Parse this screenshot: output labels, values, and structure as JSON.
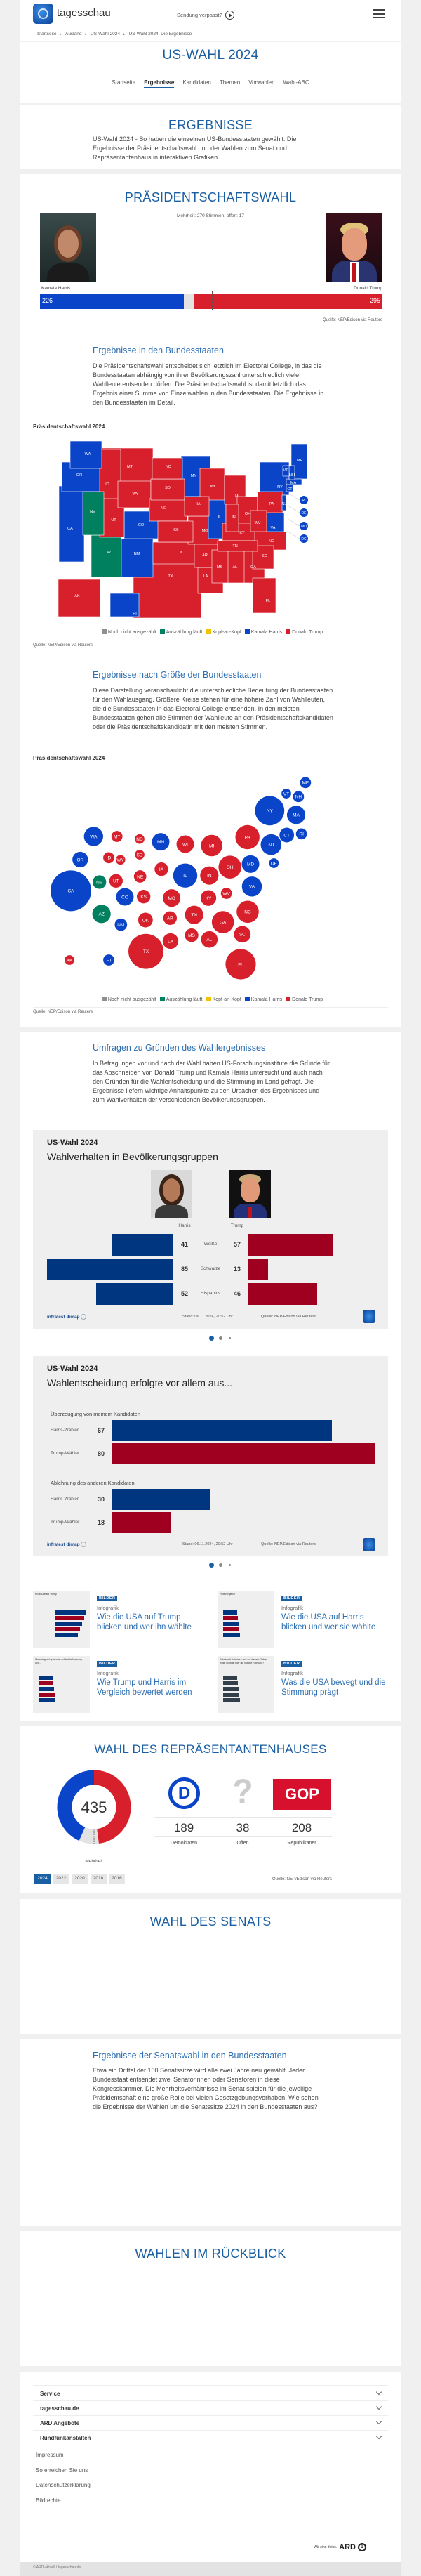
{
  "header": {
    "brand": "tagesschau",
    "missed_show": "Sendung verpasst?",
    "breadcrumb": [
      "Startseite",
      "Ausland",
      "US-Wahl 2024",
      "US-Wahl 2024: Die Ergebnisse"
    ],
    "title": "US-WAHL 2024",
    "nav": [
      {
        "label": "Startseite",
        "active": false
      },
      {
        "label": "Ergebnisse",
        "active": true
      },
      {
        "label": "Kandidaten",
        "active": false
      },
      {
        "label": "Themen",
        "active": false
      },
      {
        "label": "Vorwahlen",
        "active": false
      },
      {
        "label": "Wahl-ABC",
        "active": false
      }
    ]
  },
  "intro": {
    "title": "ERGEBNISSE",
    "text": "US-Wahl 2024 - So haben die einzelnen US-Bundesstaaten gewählt: Die Ergebnisse der Präsidentschaftswahl und der Wahlen zum Senat und Repräsentantenhaus in interaktiven Grafiken."
  },
  "president": {
    "title": "PRÄSIDENTSCHAFTSWAHL",
    "majority_note": "Mehrheit: 270 Stimmen, offen: 17",
    "harris": {
      "name": "Kamala Harris",
      "votes": 226
    },
    "trump": {
      "name": "Donald Trump",
      "votes": 295
    },
    "open": 17,
    "majority": 270,
    "source": "Quelle: NEP/Edison via Reuters",
    "states_heading": "Ergebnisse in den Bundesstaaten",
    "states_text": "Die Präsidentschaftswahl entscheidet sich letztlich im Electoral College, in das die Bundesstaaten abhängig von ihrer Bevölkerungszahl unterschiedlich viele Wahlleute entsenden dürfen. Die Präsidentschaftswahl ist damit letztlich das Ergebnis einer Summe von Einzelwahlen in den Bundesstaaten. Die Ergebnisse in den Bundesstaaten im Detail.",
    "size_heading": "Ergebnisse nach Größe der Bundesstaaten",
    "size_text": "Diese Darstellung veranschaulicht die unterschiedliche Bedeutung der Bundesstaaten für den Wahlausgang. Größere Kreise stehen für eine höhere Zahl von Wahlleuten, die die Bundesstaaten in das Electoral College entsenden. In den meisten Bundesstaaten gehen alle Stimmen der Wahlleute an den Präsidentschaftskandidaten oder die Präsidentschaftskandidatin mit den meisten Stimmen."
  },
  "legend": [
    {
      "key": "pending",
      "label": "Noch nicht ausgezählt",
      "color": "#8f8f8f"
    },
    {
      "key": "counting",
      "label": "Auszählung läuft",
      "color": "#00805e"
    },
    {
      "key": "tossup",
      "label": "Kopf-an-Kopf",
      "color": "#f0c400"
    },
    {
      "key": "harris",
      "label": "Kamala Harris",
      "color": "#0a44c8"
    },
    {
      "key": "trump",
      "label": "Donald Trump",
      "color": "#d7202b"
    }
  ],
  "chart_data": [
    {
      "type": "map",
      "title": "Präsidentschaftswahl 2024",
      "legend_position": "bottom",
      "source": "Quelle: NEP/Edison via Reuters",
      "states": [
        [
          "WA",
          "harris"
        ],
        [
          "OR",
          "harris"
        ],
        [
          "CA",
          "harris"
        ],
        [
          "NV",
          "counting"
        ],
        [
          "ID",
          "trump"
        ],
        [
          "MT",
          "trump"
        ],
        [
          "WY",
          "trump"
        ],
        [
          "UT",
          "trump"
        ],
        [
          "AZ",
          "counting"
        ],
        [
          "CO",
          "harris"
        ],
        [
          "NM",
          "harris"
        ],
        [
          "ND",
          "trump"
        ],
        [
          "SD",
          "trump"
        ],
        [
          "NE",
          "trump"
        ],
        [
          "KS",
          "trump"
        ],
        [
          "OK",
          "trump"
        ],
        [
          "TX",
          "trump"
        ],
        [
          "MN",
          "harris"
        ],
        [
          "IA",
          "trump"
        ],
        [
          "MO",
          "trump"
        ],
        [
          "AR",
          "trump"
        ],
        [
          "LA",
          "trump"
        ],
        [
          "WI",
          "trump"
        ],
        [
          "IL",
          "harris"
        ],
        [
          "MI",
          "trump"
        ],
        [
          "IN",
          "trump"
        ],
        [
          "OH",
          "trump"
        ],
        [
          "KY",
          "trump"
        ],
        [
          "TN",
          "trump"
        ],
        [
          "MS",
          "trump"
        ],
        [
          "AL",
          "trump"
        ],
        [
          "GA",
          "trump"
        ],
        [
          "FL",
          "trump"
        ],
        [
          "SC",
          "trump"
        ],
        [
          "NC",
          "trump"
        ],
        [
          "VA",
          "harris"
        ],
        [
          "WV",
          "trump"
        ],
        [
          "PA",
          "trump"
        ],
        [
          "NY",
          "harris"
        ],
        [
          "VT",
          "harris"
        ],
        [
          "NH",
          "harris"
        ],
        [
          "ME",
          "harris"
        ],
        [
          "MA",
          "harris"
        ],
        [
          "CT",
          "harris"
        ],
        [
          "NJ",
          "harris"
        ],
        [
          "AK",
          "trump"
        ],
        [
          "HI",
          "harris"
        ],
        [
          "RI",
          "harris"
        ],
        [
          "DE",
          "harris"
        ],
        [
          "MD",
          "harris"
        ],
        [
          "DC",
          "harris"
        ]
      ]
    },
    {
      "type": "scatter",
      "title": "Präsidentschaftswahl 2024",
      "legend_position": "bottom",
      "source": "Quelle: NEP/Edison via Reuters",
      "states": [
        [
          "CA",
          "harris",
          54
        ],
        [
          "TX",
          "trump",
          40
        ],
        [
          "FL",
          "trump",
          30
        ],
        [
          "NY",
          "harris",
          28
        ],
        [
          "PA",
          "trump",
          19
        ],
        [
          "IL",
          "harris",
          19
        ],
        [
          "OH",
          "trump",
          17
        ],
        [
          "GA",
          "trump",
          16
        ],
        [
          "NC",
          "trump",
          16
        ],
        [
          "MI",
          "trump",
          15
        ],
        [
          "NJ",
          "harris",
          14
        ],
        [
          "VA",
          "harris",
          13
        ],
        [
          "WA",
          "harris",
          12
        ],
        [
          "AZ",
          "counting",
          11
        ],
        [
          "IN",
          "trump",
          11
        ],
        [
          "MA",
          "harris",
          11
        ],
        [
          "TN",
          "trump",
          11
        ],
        [
          "MD",
          "harris",
          10
        ],
        [
          "MN",
          "harris",
          10
        ],
        [
          "MO",
          "trump",
          10
        ],
        [
          "WI",
          "trump",
          10
        ],
        [
          "CO",
          "harris",
          10
        ],
        [
          "AL",
          "trump",
          9
        ],
        [
          "SC",
          "trump",
          9
        ],
        [
          "KY",
          "trump",
          8
        ],
        [
          "LA",
          "trump",
          8
        ],
        [
          "OR",
          "harris",
          8
        ],
        [
          "CT",
          "harris",
          7
        ],
        [
          "OK",
          "trump",
          7
        ],
        [
          "AR",
          "trump",
          6
        ],
        [
          "IA",
          "trump",
          6
        ],
        [
          "KS",
          "trump",
          6
        ],
        [
          "MS",
          "trump",
          6
        ],
        [
          "NV",
          "counting",
          6
        ],
        [
          "UT",
          "trump",
          6
        ],
        [
          "NE",
          "trump",
          5
        ],
        [
          "NM",
          "harris",
          5
        ],
        [
          "ID",
          "trump",
          4
        ],
        [
          "ME",
          "harris",
          4
        ],
        [
          "MT",
          "trump",
          4
        ],
        [
          "NH",
          "harris",
          4
        ],
        [
          "HI",
          "harris",
          4
        ],
        [
          "RI",
          "harris",
          4
        ],
        [
          "WV",
          "trump",
          4
        ],
        [
          "AK",
          "trump",
          3
        ],
        [
          "DE",
          "harris",
          3
        ],
        [
          "ND",
          "trump",
          3
        ],
        [
          "SD",
          "trump",
          3
        ],
        [
          "VT",
          "harris",
          3
        ],
        [
          "WY",
          "trump",
          3
        ]
      ]
    },
    {
      "type": "bar",
      "kicker": "US-Wahl 2024",
      "title": "Wahlverhalten in Bevölkerungsgruppen",
      "series_names": [
        "Harris",
        "Trump"
      ],
      "categories": [
        "Weiße",
        "Schwarze",
        "Hispanics"
      ],
      "harris": [
        41,
        85,
        52
      ],
      "trump": [
        57,
        13,
        46
      ],
      "stand": "Stand:  06.11.2024, 20:52 Uhr",
      "source": "Quelle: NEP/Edison via Reuters",
      "credit": "infratest dimap"
    },
    {
      "type": "bar",
      "kicker": "US-Wahl 2024",
      "title": "Wahlentscheidung erfolgte vor allem aus...",
      "groups": [
        {
          "label": "Überzeugung von meinem Kandidaten",
          "rows": [
            {
              "label": "Harris-Wähler",
              "value": 67,
              "party": "harris"
            },
            {
              "label": "Trump-Wähler",
              "value": 80,
              "party": "trump"
            }
          ]
        },
        {
          "label": "Ablehnung des anderen Kandidaten",
          "rows": [
            {
              "label": "Harris-Wähler",
              "value": 30,
              "party": "harris"
            },
            {
              "label": "Trump-Wähler",
              "value": 18,
              "party": "trump"
            }
          ]
        }
      ],
      "stand": "Stand:  06.11.2024, 20:52 Uhr",
      "source": "Quelle: NEP/Edison via Reuters",
      "credit": "infratest dimap"
    },
    {
      "type": "pie",
      "title": "WAHL DES REPRÄSENTANTENHAUSES",
      "total": 435,
      "slices": [
        {
          "label": "Republikaner",
          "value": 208,
          "color": "#d7202b"
        },
        {
          "label": "Offen",
          "value": 38,
          "color": "#e3e3e3"
        },
        {
          "label": "Demokraten",
          "value": 189,
          "color": "#0a44c8"
        }
      ],
      "majority_label": "Mehrheit"
    }
  ],
  "polls": {
    "heading": "Umfragen zu Gründen des Wahlergebnisses",
    "text": "In Befragungen vor und nach der Wahl haben US-Forschungsinstitute die Gründe für das Abschneiden von Donald Trump und Kamala Harris untersucht und auch nach den Gründen für die Wahlentscheidung und die Stimmung im Land gefragt. Die Ergebnisse liefern wichtige Anhaltspunkte zu den Ursachen des Ergebnisses und zum Wahlverhalten der verschiedenen Bevölkerungsgruppen.",
    "carousel_pages": 3,
    "carousel_active": 1
  },
  "tiles": [
    {
      "badge": "BILDER",
      "kind": "Infografik",
      "title": "Wie die USA auf Trump blicken und wer ihn wählte",
      "thumb_title": "Profil Donald Trump"
    },
    {
      "badge": "BILDER",
      "kind": "Infografik",
      "title": "Wie die USA auf Harris blicken und wer sie wählte",
      "thumb_title": "Profilvergleich"
    },
    {
      "badge": "BILDER",
      "kind": "Infografik",
      "title": "Wie Trump und Harris im Vergleich bewertet werden",
      "thumb_title": "Überwiegend gute oder schlechte Meinung von..."
    },
    {
      "badge": "BILDER",
      "kind": "Infografik",
      "title": "Was die USA bewegt und die Stimmung prägt",
      "thumb_title": "Entwickelt sich das Land auf diesem Gebiet in die richtige oder die falsche Richtung?"
    }
  ],
  "house": {
    "title": "WAHL DES REPRÄSENTANTENHAUSES",
    "total": "435",
    "majority_label": "Mehrheit",
    "parties": [
      {
        "label": "Demokraten",
        "seats": "189",
        "icon": "democrat-logo"
      },
      {
        "label": "Offen",
        "seats": "38",
        "icon": "question-mark"
      },
      {
        "label": "Republikaner",
        "seats": "208",
        "icon": "gop-logo",
        "logo_text": "GOP"
      }
    ],
    "years": [
      "2024",
      "2022",
      "2020",
      "2018",
      "2016"
    ],
    "active_year": "2024",
    "source": "Quelle: NEP/Edison via Reuters"
  },
  "senate": {
    "title": "WAHL DES SENATS",
    "heading": "Ergebnisse der Senatswahl in den Bundesstaaten",
    "text": "Etwa ein Drittel der 100 Senatssitze wird alle zwei Jahre neu gewählt. Jeder Bundesstaat entsendet zwei Senatorinnen oder Senatoren in diese Kongresskammer. Die Mehrheitsverhältnisse im Senat spielen für die jeweilige Präsidentschaft eine große Rolle bei vielen Gesetzgebungsvorhaben. Wie sehen die Ergebnisse der Wahlen um die Senatssitze 2024 in den Bundesstaaten aus?"
  },
  "review": {
    "title": "WAHLEN IM RÜCKBLICK"
  },
  "footer": {
    "accordions": [
      "Service",
      "tagesschau.de",
      "ARD Angebote",
      "Rundfunkanstalten"
    ],
    "links": [
      "Impressum",
      "So erreichen Sie uns",
      "Datenschutzerklärung",
      "Bildrechte"
    ],
    "slogan": "Wir sind deins.",
    "ard_logo": "ARD",
    "copyright": "© ARD-aktuell / tagesschau.de"
  }
}
